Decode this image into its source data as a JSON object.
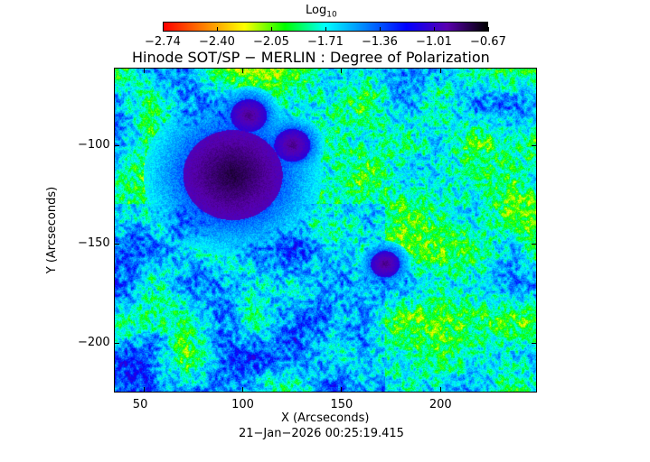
{
  "chart_data": {
    "type": "heatmap",
    "title": "Hinode SOT/SP − MERLIN : Degree of Polarization",
    "xlabel": "X (Arcseconds)",
    "ylabel": "Y (Arcseconds)",
    "xlim": [
      35,
      249
    ],
    "ylim": [
      -225,
      -61
    ],
    "x_ticks": [
      "50",
      "100",
      "150",
      "200"
    ],
    "x_tick_values": [
      50,
      100,
      150,
      200
    ],
    "y_ticks": [
      "−100",
      "−150",
      "−200"
    ],
    "y_tick_values": [
      -100,
      -150,
      -200
    ],
    "colorbar": {
      "label_base": "Log",
      "label_sub": "10",
      "ticks": [
        "−2.74",
        "−2.40",
        "−2.05",
        "−1.71",
        "−1.36",
        "−1.01",
        "−0.67"
      ],
      "range": [
        -2.74,
        -0.67
      ],
      "colormap": [
        "#ff0000",
        "#ff8000",
        "#ffff00",
        "#00ff00",
        "#00ffff",
        "#0080ff",
        "#0000ff",
        "#5a00b0",
        "#000000"
      ],
      "location": "top"
    },
    "features": [
      {
        "name": "large sunspot",
        "x": 95,
        "y": -115,
        "value": -0.8
      },
      {
        "name": "small spot",
        "x": 125,
        "y": -100,
        "value": -0.9
      },
      {
        "name": "pore",
        "x": 103,
        "y": -85,
        "value": -0.9
      },
      {
        "name": "pore",
        "x": 172,
        "y": -160,
        "value": -0.9
      }
    ],
    "grid": false
  },
  "timestamp": "21−Jan−2026 00:25:19.415"
}
